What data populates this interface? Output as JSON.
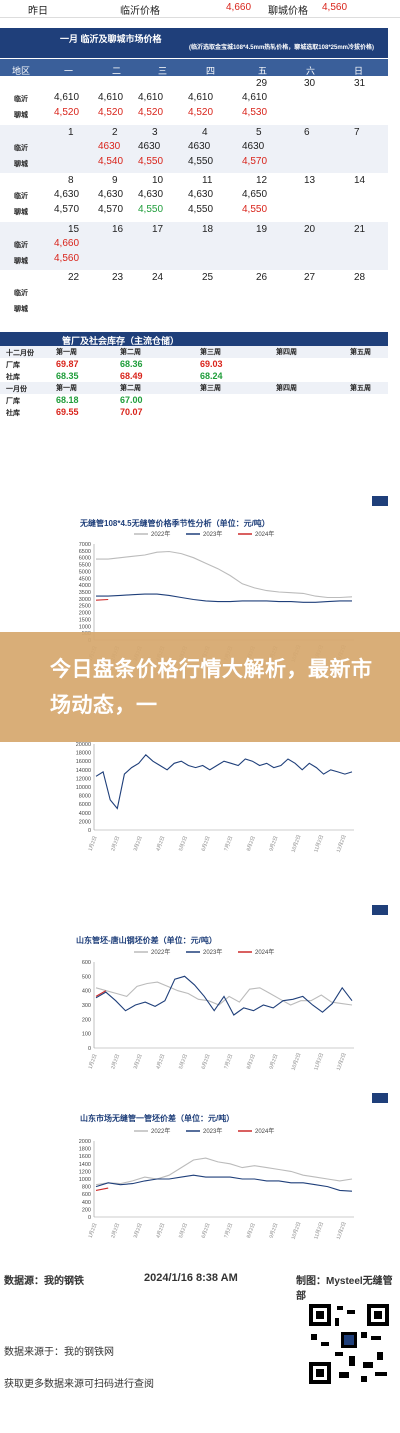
{
  "top_strip": {
    "labels": [
      "昨日",
      "临沂价格",
      "聊城价格"
    ],
    "values": [
      "4,660",
      "4,560"
    ]
  },
  "january": {
    "title": "一月 临沂及聊城市场价格",
    "subtitle": "(临沂选取金宝城108*4.5mm热轧价格，聊城选取108*25mm冷拔价格)",
    "col_headers": [
      "地区",
      "一",
      "二",
      "三",
      "四",
      "五",
      "六",
      "日"
    ],
    "city_linyi": "临沂",
    "city_liaocheng": "聊城",
    "weeks": [
      {
        "dates": [
          "",
          "",
          "",
          "",
          "29",
          "30",
          "31"
        ],
        "linyi": [
          "4,610",
          "4,610",
          "4,610",
          "4,610",
          "4,610",
          "",
          ""
        ],
        "liaocheng": [
          "4,520",
          "4,520",
          "4,520",
          "4,520",
          "4,530",
          "",
          ""
        ]
      },
      {
        "dates": [
          "1",
          "2",
          "3",
          "4",
          "5",
          "6",
          "7"
        ],
        "linyi": [
          "",
          "4630",
          "4630",
          "4630",
          "4630",
          "",
          ""
        ],
        "liaocheng": [
          "",
          "4,540",
          "4,550",
          "4,550",
          "4,570",
          "",
          ""
        ]
      },
      {
        "dates": [
          "8",
          "9",
          "10",
          "11",
          "12",
          "13",
          "14"
        ],
        "linyi": [
          "4,630",
          "4,630",
          "4,630",
          "4,630",
          "4,650",
          "",
          ""
        ],
        "liaocheng": [
          "4,570",
          "4,570",
          "4,550",
          "4,550",
          "4,550",
          "",
          ""
        ]
      },
      {
        "dates": [
          "15",
          "16",
          "17",
          "18",
          "19",
          "20",
          "21"
        ],
        "linyi": [
          "4,660",
          "",
          "",
          "",
          "",
          "",
          ""
        ],
        "liaocheng": [
          "4,560",
          "",
          "",
          "",
          "",
          "",
          ""
        ]
      },
      {
        "dates": [
          "22",
          "23",
          "24",
          "25",
          "26",
          "27",
          "28"
        ],
        "linyi": [
          "",
          "",
          "",
          "",
          "",
          "",
          ""
        ],
        "liaocheng": [
          "",
          "",
          "",
          "",
          "",
          "",
          ""
        ]
      }
    ]
  },
  "inventory": {
    "title": "管厂及社会库存（主流仓储）",
    "rows": [
      {
        "label": "十二月份",
        "weeks": [
          "第一周",
          "第二周",
          "第三周",
          "第四周",
          "第五周"
        ]
      },
      {
        "label": "厂库",
        "values": [
          "69.87",
          "68.36",
          "69.03",
          "",
          ""
        ]
      },
      {
        "label": "社库",
        "values": [
          "68.35",
          "68.49",
          "68.24",
          "",
          ""
        ]
      },
      {
        "label": "一月份",
        "weeks": [
          "第一周",
          "第二周",
          "第三周",
          "第四周",
          "第五周"
        ]
      },
      {
        "label": "厂库",
        "values": [
          "68.18",
          "67.00",
          "",
          "",
          ""
        ]
      },
      {
        "label": "社库",
        "values": [
          "69.55",
          "70.07",
          "",
          "",
          ""
        ]
      }
    ]
  },
  "overlay_text": "今日盘条价格行情大解析，最新市场动态，一",
  "footer": {
    "source": "数据源：我的钢铁",
    "datetime": "2024/1/16 8:38 AM",
    "maker": "制图：Mysteel无缝管部",
    "source2": "数据来源于：我的钢铁网",
    "scan": "获取更多数据来源可扫码进行查阅"
  },
  "chart_data": [
    {
      "type": "line",
      "title": "无缝管108*4.5无缝管价格季节性分析（单位：元/吨）",
      "legend": [
        "2022年",
        "2023年",
        "2024年"
      ],
      "ylim": [
        0,
        7000
      ],
      "yticks": [
        0,
        500,
        1000,
        1500,
        2000,
        2500,
        3000,
        3500,
        4000,
        4500,
        5000,
        5500,
        6000,
        6500,
        7000
      ],
      "series": [
        {
          "name": "2022年",
          "color": "#bbbbbb",
          "values": [
            5900,
            5900,
            6000,
            6100,
            6200,
            6400,
            6450,
            6300,
            6000,
            5600,
            5200,
            4700,
            4100,
            3800,
            3600,
            3500,
            3450,
            3400,
            3200,
            3100,
            3100,
            3150
          ]
        },
        {
          "name": "2023年",
          "color": "#1f3f7a",
          "values": [
            3200,
            3200,
            3250,
            3300,
            3350,
            3350,
            3250,
            3100,
            2950,
            2850,
            2800,
            2800,
            2850,
            2850,
            2850,
            2800,
            2800,
            2750,
            2750,
            2800,
            2850,
            2850
          ]
        },
        {
          "name": "2024年",
          "color": "#cc2a2a",
          "values": [
            2900,
            2950
          ]
        }
      ]
    },
    {
      "type": "line",
      "title": "",
      "ylim": [
        0,
        20000
      ],
      "yticks": [
        0,
        2000,
        4000,
        6000,
        8000,
        10000,
        12000,
        14000,
        16000,
        18000,
        20000
      ],
      "series": [
        {
          "name": "",
          "color": "#1f3f7a",
          "values": [
            12500,
            13500,
            7000,
            5000,
            13000,
            14500,
            15500,
            17500,
            16000,
            15000,
            14000,
            15500,
            16000,
            15000,
            14500,
            15000,
            14000,
            15000,
            16000,
            15500,
            15000,
            16500,
            16000,
            15000,
            15500,
            14500,
            15000,
            16500,
            15500,
            14000,
            15500,
            14500,
            13000,
            14000,
            13500,
            13000,
            13500
          ]
        }
      ]
    },
    {
      "type": "line",
      "title": "山东管坯-唐山钢坯价差（单位：元/吨）",
      "legend": [
        "2022年",
        "2023年",
        "2024年"
      ],
      "ylim": [
        0,
        600
      ],
      "yticks": [
        0,
        100,
        200,
        300,
        400,
        500,
        600
      ],
      "series": [
        {
          "name": "2022年",
          "color": "#bbbbbb",
          "values": [
            420,
            400,
            380,
            360,
            430,
            450,
            460,
            430,
            400,
            380,
            340,
            330,
            300,
            360,
            320,
            410,
            420,
            380,
            340,
            300,
            330,
            330,
            370,
            320,
            310,
            300
          ]
        },
        {
          "name": "2023年",
          "color": "#1f3f7a",
          "values": [
            350,
            390,
            330,
            260,
            300,
            320,
            290,
            330,
            480,
            500,
            440,
            360,
            260,
            360,
            230,
            280,
            260,
            300,
            280,
            330,
            340,
            360,
            300,
            250,
            310,
            420,
            330
          ]
        },
        {
          "name": "2024年",
          "color": "#cc2a2a",
          "values": [
            360,
            400
          ]
        }
      ]
    },
    {
      "type": "line",
      "title": "山东市场无缝管一管坯价差（单位：元/吨）",
      "legend": [
        "2022年",
        "2023年",
        "2024年"
      ],
      "ylim": [
        0,
        2000
      ],
      "yticks": [
        0,
        200,
        400,
        600,
        800,
        1000,
        1200,
        1400,
        1600,
        1800,
        2000
      ],
      "series": [
        {
          "name": "2022年",
          "color": "#bbbbbb",
          "values": [
            850,
            900,
            880,
            950,
            1050,
            1000,
            1100,
            1300,
            1500,
            1550,
            1450,
            1400,
            1300,
            1350,
            1300,
            1250,
            1200,
            1100,
            1050,
            1000,
            950,
            1000
          ]
        },
        {
          "name": "2023年",
          "color": "#1f3f7a",
          "values": [
            800,
            900,
            850,
            880,
            950,
            1000,
            1000,
            1050,
            1100,
            1050,
            1050,
            1050,
            1000,
            1000,
            950,
            950,
            900,
            900,
            850,
            800,
            700,
            680
          ]
        },
        {
          "name": "2024年",
          "color": "#cc2a2a",
          "values": [
            700,
            760
          ]
        }
      ]
    }
  ]
}
